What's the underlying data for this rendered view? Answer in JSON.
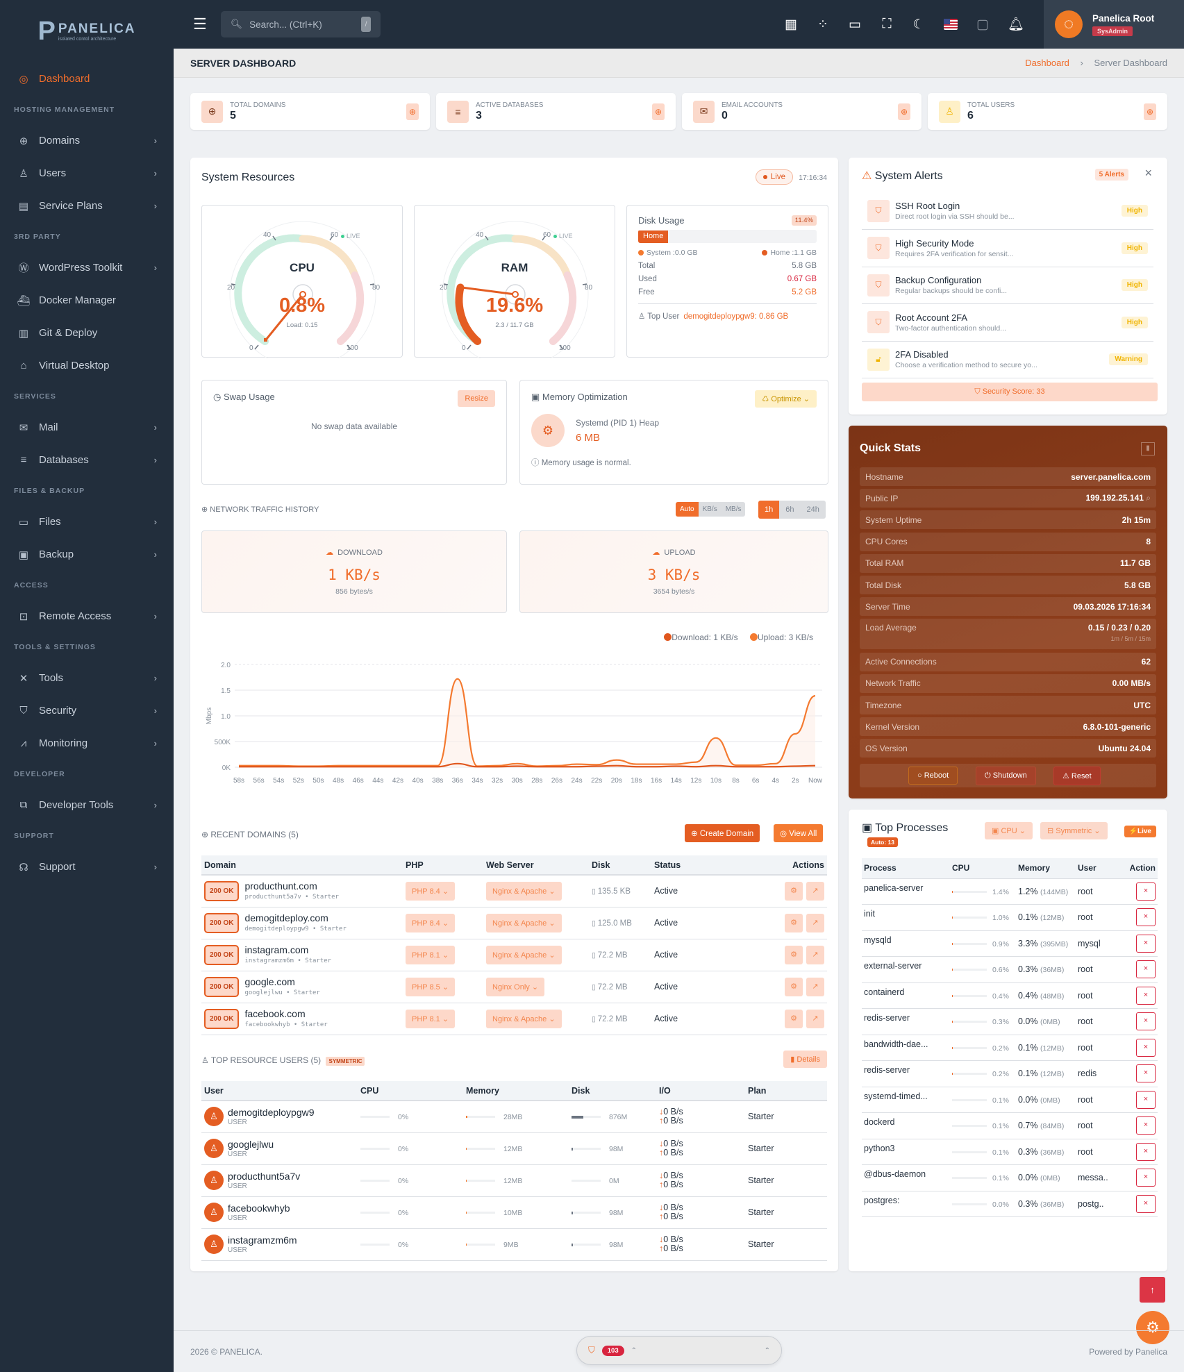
{
  "brand": {
    "name": "PANELICA",
    "tagline": "isolated contol architecture",
    "letter": "P"
  },
  "sidebar": {
    "active": {
      "label": "Dashboard",
      "icon": "dashboard-icon"
    },
    "sections": [
      {
        "title": "HOSTING MANAGEMENT",
        "items": [
          {
            "label": "Domains",
            "icon": "globe-icon",
            "chevron": true
          },
          {
            "label": "Users",
            "icon": "user-icon",
            "chevron": true
          },
          {
            "label": "Service Plans",
            "icon": "archive-icon",
            "chevron": true
          }
        ]
      },
      {
        "title": "3RD PARTY",
        "items": [
          {
            "label": "WordPress Toolkit",
            "icon": "wordpress-icon",
            "chevron": true
          },
          {
            "label": "Docker Manager",
            "icon": "ship-icon",
            "chevron": false
          },
          {
            "label": "Git & Deploy",
            "icon": "book-icon",
            "chevron": false
          },
          {
            "label": "Virtual Desktop",
            "icon": "wifi-desktop-icon",
            "chevron": false
          }
        ]
      },
      {
        "title": "SERVICES",
        "items": [
          {
            "label": "Mail",
            "icon": "mail-icon",
            "chevron": true
          },
          {
            "label": "Databases",
            "icon": "database-icon",
            "chevron": true
          }
        ]
      },
      {
        "title": "FILES & BACKUP",
        "items": [
          {
            "label": "Files",
            "icon": "folder-icon",
            "chevron": true
          },
          {
            "label": "Backup",
            "icon": "save-icon",
            "chevron": true
          }
        ]
      },
      {
        "title": "ACCESS",
        "items": [
          {
            "label": "Remote Access",
            "icon": "terminal-icon",
            "chevron": true
          }
        ]
      },
      {
        "title": "TOOLS & SETTINGS",
        "items": [
          {
            "label": "Tools",
            "icon": "tools-icon",
            "chevron": true
          },
          {
            "label": "Security",
            "icon": "shield-icon",
            "chevron": true
          },
          {
            "label": "Monitoring",
            "icon": "chart-line-icon",
            "chevron": true
          }
        ]
      },
      {
        "title": "DEVELOPER",
        "items": [
          {
            "label": "Developer Tools",
            "icon": "code-icon",
            "chevron": true
          }
        ]
      },
      {
        "title": "SUPPORT",
        "items": [
          {
            "label": "Support",
            "icon": "headset-icon",
            "chevron": true
          }
        ]
      }
    ]
  },
  "topbar": {
    "search_placeholder": "Search... (Ctrl+K)",
    "search_kbd": "/",
    "icons": [
      "qr-code-icon",
      "apps-icon",
      "monitor-icon",
      "fullscreen-icon",
      "moon-icon",
      "us-flag-icon",
      "sticky-note-icon",
      "bell-icon"
    ],
    "user": {
      "name": "Panelica Root",
      "role": "SysAdmin"
    }
  },
  "page": {
    "title": "SERVER DASHBOARD",
    "breadcrumb": [
      "Dashboard",
      "Server Dashboard"
    ]
  },
  "stats": [
    {
      "label": "TOTAL DOMAINS",
      "value": "5",
      "icon": "globe-icon"
    },
    {
      "label": "ACTIVE DATABASES",
      "value": "3",
      "icon": "database-icon"
    },
    {
      "label": "EMAIL ACCOUNTS",
      "value": "0",
      "icon": "mail-icon"
    },
    {
      "label": "TOTAL USERS",
      "value": "6",
      "icon": "user-icon"
    }
  ],
  "resources": {
    "title": "System Resources",
    "live": "Live",
    "time": "17:16:34",
    "cpu": {
      "name": "CPU",
      "value": "0.8%",
      "sub": "Load: 0.15",
      "percent": 0.8
    },
    "ram": {
      "name": "RAM",
      "value": "19.6%",
      "sub": "2.3 / 11.7 GB",
      "percent": 19.6
    },
    "gauge_ticks": [
      "0",
      "20",
      "40",
      "60",
      "80",
      "100"
    ],
    "gauge_live": "LIVE",
    "disk": {
      "title": "Disk Usage",
      "percent": "11.4%",
      "bar_label": "Home",
      "legend": [
        "System :0.0 GB",
        "Home :1.1 GB"
      ],
      "rows": [
        {
          "k": "Total",
          "v": "5.8 GB"
        },
        {
          "k": "Used",
          "v": "0.67 GB"
        },
        {
          "k": "Free",
          "v": "5.2 GB"
        }
      ],
      "top_user_label": "Top User",
      "top_user": "demogitdeploypgw9: 0.86 GB"
    }
  },
  "swap": {
    "title": "Swap Usage",
    "button": "Resize",
    "empty": "No swap data available"
  },
  "memopt": {
    "title": "Memory Optimization",
    "button": "Optimize",
    "item": "Systemd (PID 1) Heap",
    "value": "6 MB",
    "note": "Memory usage is normal."
  },
  "network": {
    "title": "NETWORK TRAFFIC HISTORY",
    "units": [
      "Auto",
      "KB/s",
      "MB/s"
    ],
    "units_active": 0,
    "ranges": [
      "1h",
      "6h",
      "24h"
    ],
    "ranges_active": 0,
    "download": {
      "label": "DOWNLOAD",
      "value": "1 KB/s",
      "bytes": "856 bytes/s"
    },
    "upload": {
      "label": "UPLOAD",
      "value": "3 KB/s",
      "bytes": "3654 bytes/s"
    },
    "legend": [
      "Download: 1 KB/s",
      "Upload: 3 KB/s"
    ]
  },
  "chart_data": {
    "type": "line",
    "title": "Network Traffic History",
    "xlabel": "",
    "ylabel": "Mbps",
    "y_ticks": [
      "0K",
      "500K",
      "1.0",
      "1.5",
      "2.0"
    ],
    "ylim": [
      0,
      2.0
    ],
    "x": [
      "58s",
      "56s",
      "54s",
      "52s",
      "50s",
      "48s",
      "46s",
      "44s",
      "42s",
      "40s",
      "38s",
      "36s",
      "34s",
      "32s",
      "30s",
      "28s",
      "26s",
      "24s",
      "22s",
      "20s",
      "18s",
      "16s",
      "14s",
      "12s",
      "10s",
      "8s",
      "6s",
      "4s",
      "2s",
      "Now"
    ],
    "series": [
      {
        "name": "Upload",
        "color": "#f47a30",
        "values": [
          0.03,
          0.03,
          0.03,
          0.02,
          0.02,
          0.03,
          0.03,
          0.03,
          0.03,
          0.03,
          0.03,
          1.72,
          0.02,
          0.03,
          0.07,
          0.02,
          0.03,
          0.06,
          0.05,
          0.14,
          0.06,
          0.06,
          0.06,
          0.1,
          0.57,
          0.04,
          0.04,
          0.07,
          0.65,
          1.39
        ]
      },
      {
        "name": "Download",
        "color": "#e0571e",
        "values": [
          0.01,
          0.01,
          0.01,
          0.01,
          0.01,
          0.01,
          0.01,
          0.01,
          0.01,
          0.01,
          0.01,
          0.07,
          0.01,
          0.01,
          0.02,
          0.01,
          0.01,
          0.01,
          0.02,
          0.03,
          0.01,
          0.01,
          0.02,
          0.01,
          0.03,
          0.01,
          0.01,
          0.01,
          0.02,
          0.03
        ]
      }
    ],
    "grid": true,
    "legend_position": "top-right"
  },
  "domains": {
    "title": "RECENT DOMAINS (5)",
    "create": "Create Domain",
    "view_all": "View All",
    "columns": [
      "Domain",
      "PHP",
      "Web Server",
      "Disk",
      "Status",
      "Actions"
    ],
    "rows": [
      {
        "code": "200 OK",
        "name": "producthunt.com",
        "owner": "producthunt5a7v • Starter",
        "php": "PHP 8.4",
        "server": "Nginx & Apache",
        "disk": "135.5 KB",
        "status": "Active"
      },
      {
        "code": "200 OK",
        "name": "demogitdeploy.com",
        "owner": "demogitdeploypgw9 • Starter",
        "php": "PHP 8.4",
        "server": "Nginx & Apache",
        "disk": "125.0 MB",
        "status": "Active"
      },
      {
        "code": "200 OK",
        "name": "instagram.com",
        "owner": "instagramzm6m • Starter",
        "php": "PHP 8.1",
        "server": "Nginx & Apache",
        "disk": "72.2 MB",
        "status": "Active"
      },
      {
        "code": "200 OK",
        "name": "google.com",
        "owner": "googlejlwu • Starter",
        "php": "PHP 8.5",
        "server": "Nginx Only",
        "disk": "72.2 MB",
        "status": "Active"
      },
      {
        "code": "200 OK",
        "name": "facebook.com",
        "owner": "facebookwhyb • Starter",
        "php": "PHP 8.1",
        "server": "Nginx & Apache",
        "disk": "72.2 MB",
        "status": "Active"
      }
    ]
  },
  "resusers": {
    "title": "TOP RESOURCE USERS (5)",
    "badge": "SYMMETRIC",
    "details": "Details",
    "columns": [
      "User",
      "CPU",
      "Memory",
      "Disk",
      "I/O",
      "Plan"
    ],
    "rows": [
      {
        "name": "demogitdeploypgw9",
        "role": "USER",
        "cpu": "0%",
        "mem": "28MB",
        "mem_pct": 5,
        "disk": "876M",
        "disk_pct": 40,
        "io_down": "0 B/s",
        "io_up": "0 B/s",
        "plan": "Starter"
      },
      {
        "name": "googlejlwu",
        "role": "USER",
        "cpu": "0%",
        "mem": "12MB",
        "mem_pct": 2,
        "disk": "98M",
        "disk_pct": 4,
        "io_down": "0 B/s",
        "io_up": "0 B/s",
        "plan": "Starter"
      },
      {
        "name": "producthunt5a7v",
        "role": "USER",
        "cpu": "0%",
        "mem": "12MB",
        "mem_pct": 2,
        "disk": "0M",
        "disk_pct": 0,
        "io_down": "0 B/s",
        "io_up": "0 B/s",
        "plan": "Starter"
      },
      {
        "name": "facebookwhyb",
        "role": "USER",
        "cpu": "0%",
        "mem": "10MB",
        "mem_pct": 2,
        "disk": "98M",
        "disk_pct": 4,
        "io_down": "0 B/s",
        "io_up": "0 B/s",
        "plan": "Starter"
      },
      {
        "name": "instagramzm6m",
        "role": "USER",
        "cpu": "0%",
        "mem": "9MB",
        "mem_pct": 2,
        "disk": "98M",
        "disk_pct": 4,
        "io_down": "0 B/s",
        "io_up": "0 B/s",
        "plan": "Starter"
      }
    ]
  },
  "alerts": {
    "title": "System Alerts",
    "count": "5 Alerts",
    "items": [
      {
        "title": "SSH Root Login",
        "desc": "Direct root login via SSH should be...",
        "severity": "High",
        "icon": "shield-alert-icon"
      },
      {
        "title": "High Security Mode",
        "desc": "Requires 2FA verification for sensit...",
        "severity": "High",
        "icon": "shield-alert-icon"
      },
      {
        "title": "Backup Configuration",
        "desc": "Regular backups should be confi...",
        "severity": "High",
        "icon": "shield-alert-icon"
      },
      {
        "title": "Root Account 2FA",
        "desc": "Two-factor authentication should...",
        "severity": "High",
        "icon": "shield-alert-icon"
      },
      {
        "title": "2FA Disabled",
        "desc": "Choose a verification method to secure yo...",
        "severity": "Warning",
        "icon": "unlock-icon"
      }
    ],
    "score": "Security Score: 33"
  },
  "quickstats": {
    "title": "Quick Stats",
    "rows": [
      {
        "k": "Hostname",
        "v": "server.panelica.com"
      },
      {
        "k": "Public IP",
        "v": "199.192.25.141"
      },
      {
        "k": "System Uptime",
        "v": "2h 15m"
      },
      {
        "k": "CPU Cores",
        "v": "8"
      },
      {
        "k": "Total RAM",
        "v": "11.7 GB"
      },
      {
        "k": "Total Disk",
        "v": "5.8 GB"
      },
      {
        "k": "Server Time",
        "v": "09.03.2026 17:16:34"
      },
      {
        "k": "Load Average",
        "v": "0.15 / 0.23 / 0.20",
        "sub": "1m / 5m / 15m"
      },
      {
        "k": "Active Connections",
        "v": "62"
      },
      {
        "k": "Network Traffic",
        "v": "0.00 MB/s"
      },
      {
        "k": "Timezone",
        "v": "UTC"
      },
      {
        "k": "Kernel Version",
        "v": "6.8.0-101-generic"
      },
      {
        "k": "OS Version",
        "v": "Ubuntu 24.04"
      }
    ],
    "buttons": [
      "Reboot",
      "Shutdown",
      "Reset"
    ]
  },
  "processes": {
    "title": "Top Processes",
    "auto": "Auto: 13",
    "sort": "CPU",
    "mode": "Symmetric",
    "live": "Live",
    "columns": [
      "Process",
      "CPU",
      "Memory",
      "User",
      "Action"
    ],
    "rows": [
      {
        "name": "panelica-server",
        "cpu": "1.4%",
        "mem": "1.2%",
        "mem_mb": "(144MB)",
        "user": "root"
      },
      {
        "name": "init",
        "cpu": "1.0%",
        "mem": "0.1%",
        "mem_mb": "(12MB)",
        "user": "root"
      },
      {
        "name": "mysqld",
        "cpu": "0.9%",
        "mem": "3.3%",
        "mem_mb": "(395MB)",
        "user": "mysql"
      },
      {
        "name": "external-server",
        "cpu": "0.6%",
        "mem": "0.3%",
        "mem_mb": "(36MB)",
        "user": "root"
      },
      {
        "name": "containerd",
        "cpu": "0.4%",
        "mem": "0.4%",
        "mem_mb": "(48MB)",
        "user": "root"
      },
      {
        "name": "redis-server",
        "cpu": "0.3%",
        "mem": "0.0%",
        "mem_mb": "(0MB)",
        "user": "root"
      },
      {
        "name": "bandwidth-dae...",
        "cpu": "0.2%",
        "mem": "0.1%",
        "mem_mb": "(12MB)",
        "user": "root"
      },
      {
        "name": "redis-server",
        "cpu": "0.2%",
        "mem": "0.1%",
        "mem_mb": "(12MB)",
        "user": "redis"
      },
      {
        "name": "systemd-timed...",
        "cpu": "0.1%",
        "mem": "0.0%",
        "mem_mb": "(0MB)",
        "user": "root"
      },
      {
        "name": "dockerd",
        "cpu": "0.1%",
        "mem": "0.7%",
        "mem_mb": "(84MB)",
        "user": "root"
      },
      {
        "name": "python3",
        "cpu": "0.1%",
        "mem": "0.3%",
        "mem_mb": "(36MB)",
        "user": "root"
      },
      {
        "name": "@dbus-daemon",
        "cpu": "0.1%",
        "mem": "0.0%",
        "mem_mb": "(0MB)",
        "user": "messa.."
      },
      {
        "name": "postgres:",
        "cpu": "0.0%",
        "mem": "0.3%",
        "mem_mb": "(36MB)",
        "user": "postg.."
      }
    ]
  },
  "footer": {
    "copyright": "2026 © PANELICA.",
    "powered": "Powered by Panelica",
    "dock_count": "103"
  }
}
